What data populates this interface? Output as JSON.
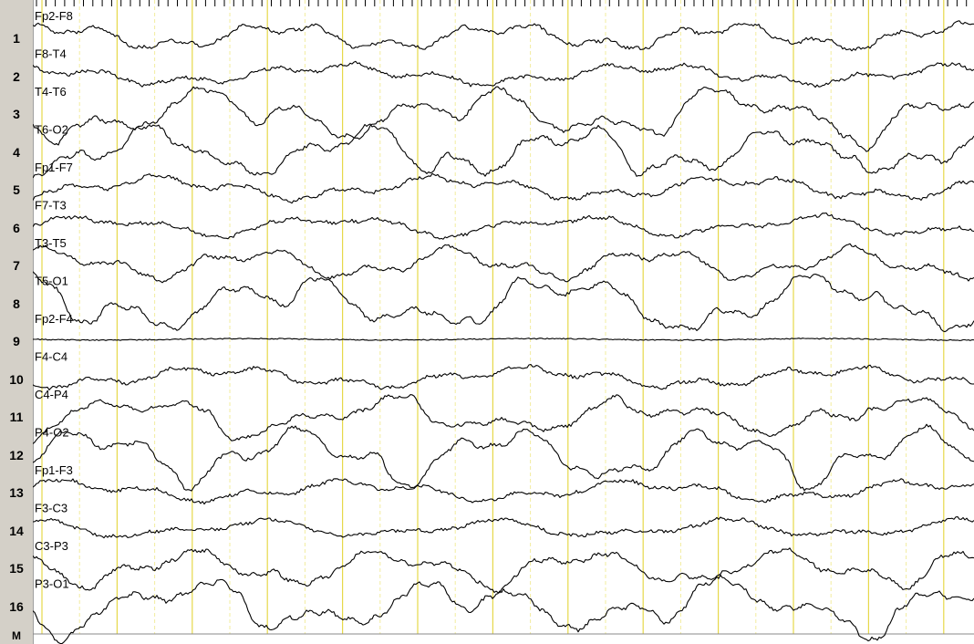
{
  "channels": [
    {
      "num": "1",
      "label": "Fp2-F8",
      "amp": 10,
      "kind": "mid"
    },
    {
      "num": "2",
      "label": "F8-T4",
      "amp": 8,
      "kind": "mid"
    },
    {
      "num": "3",
      "label": "T4-T6",
      "amp": 18,
      "kind": "big"
    },
    {
      "num": "4",
      "label": "T6-O2",
      "amp": 18,
      "kind": "big"
    },
    {
      "num": "5",
      "label": "Fp1-F7",
      "amp": 9,
      "kind": "mid"
    },
    {
      "num": "6",
      "label": "F7-T3",
      "amp": 8,
      "kind": "mid"
    },
    {
      "num": "7",
      "label": "T3-T5",
      "amp": 12,
      "kind": "mid"
    },
    {
      "num": "8",
      "label": "T5-O1",
      "amp": 20,
      "kind": "big"
    },
    {
      "num": "9",
      "label": "Fp2-F4",
      "amp": 1,
      "kind": "flat"
    },
    {
      "num": "10",
      "label": "F4-C4",
      "amp": 8,
      "kind": "mid"
    },
    {
      "num": "11",
      "label": "C4-P4",
      "amp": 14,
      "kind": "big"
    },
    {
      "num": "12",
      "label": "P4-O2",
      "amp": 18,
      "kind": "big"
    },
    {
      "num": "13",
      "label": "Fp1-F3",
      "amp": 8,
      "kind": "mid"
    },
    {
      "num": "14",
      "label": "F3-C3",
      "amp": 7,
      "kind": "mid"
    },
    {
      "num": "15",
      "label": "C3-P3",
      "amp": 12,
      "kind": "big"
    },
    {
      "num": "16",
      "label": "P3-O1",
      "amp": 18,
      "kind": "big"
    }
  ],
  "marker_label": "M",
  "colors": {
    "gutter": "#d4d0c8",
    "trace": "#000000",
    "second_line": "#e6d84a",
    "half_line": "#f2ec9e",
    "tick": "#000000"
  }
}
